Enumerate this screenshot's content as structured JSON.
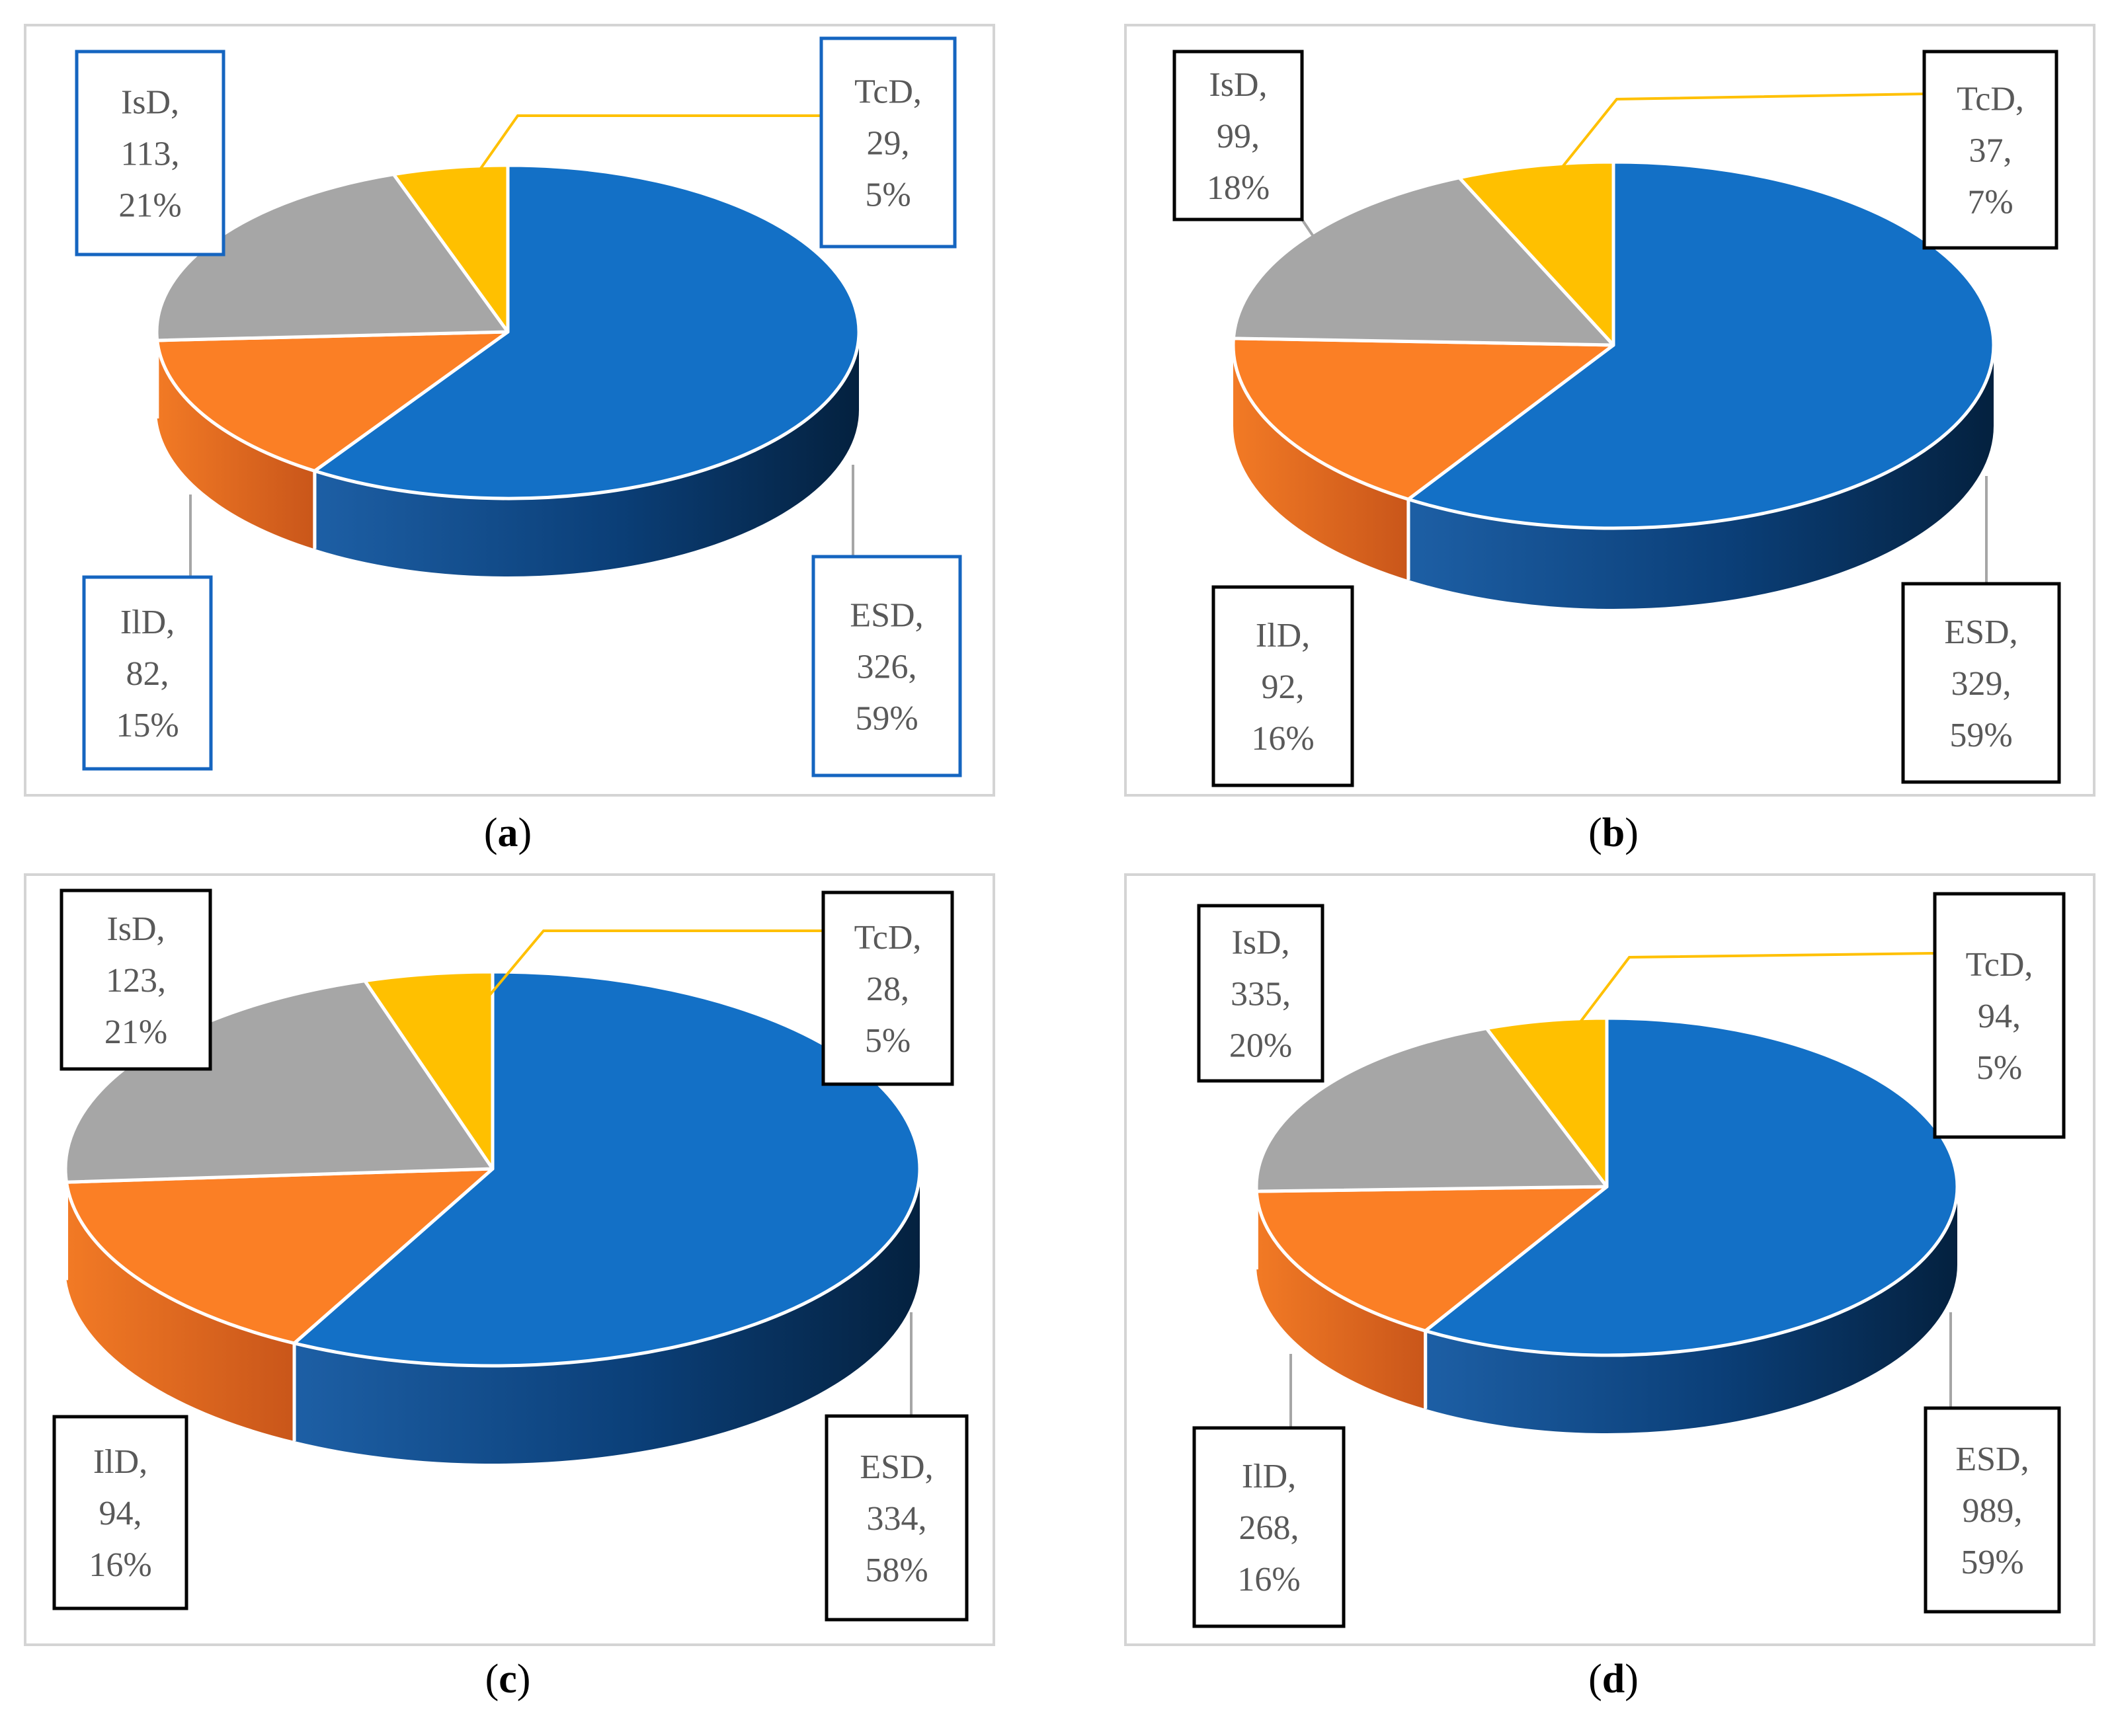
{
  "figure": {
    "panels": [
      {
        "caption": "a",
        "label_box_color": "#1565c0"
      },
      {
        "caption": "b",
        "label_box_color": "#000000"
      },
      {
        "caption": "c",
        "label_box_color": "#000000"
      },
      {
        "caption": "d",
        "label_box_color": "#000000"
      }
    ],
    "colors": {
      "ESD": "#1370c6",
      "IlD": "#fb7f25",
      "IsD": "#a6a6a6",
      "TcD": "#ffc000",
      "ESD_side": "#0a3f75",
      "IlD_side": "#d2601c",
      "leader_TcD": "#ffc000",
      "leader_other": "#a6a6a6",
      "label_text": "#595959"
    }
  },
  "chart_data": [
    {
      "type": "pie",
      "caption": "a",
      "categories": [
        "ESD",
        "IlD",
        "IsD",
        "TcD"
      ],
      "values": [
        326,
        82,
        113,
        29
      ],
      "percentages": [
        "59%",
        "15%",
        "21%",
        "5%"
      ]
    },
    {
      "type": "pie",
      "caption": "b",
      "categories": [
        "ESD",
        "IlD",
        "IsD",
        "TcD"
      ],
      "values": [
        329,
        92,
        99,
        37
      ],
      "percentages": [
        "59%",
        "16%",
        "18%",
        "7%"
      ]
    },
    {
      "type": "pie",
      "caption": "c",
      "categories": [
        "ESD",
        "IlD",
        "IsD",
        "TcD"
      ],
      "values": [
        334,
        94,
        123,
        28
      ],
      "percentages": [
        "58%",
        "16%",
        "21%",
        "5%"
      ]
    },
    {
      "type": "pie",
      "caption": "d",
      "categories": [
        "ESD",
        "IlD",
        "IsD",
        "TcD"
      ],
      "values": [
        989,
        268,
        335,
        94
      ],
      "percentages": [
        "59%",
        "16%",
        "20%",
        "5%"
      ]
    }
  ]
}
